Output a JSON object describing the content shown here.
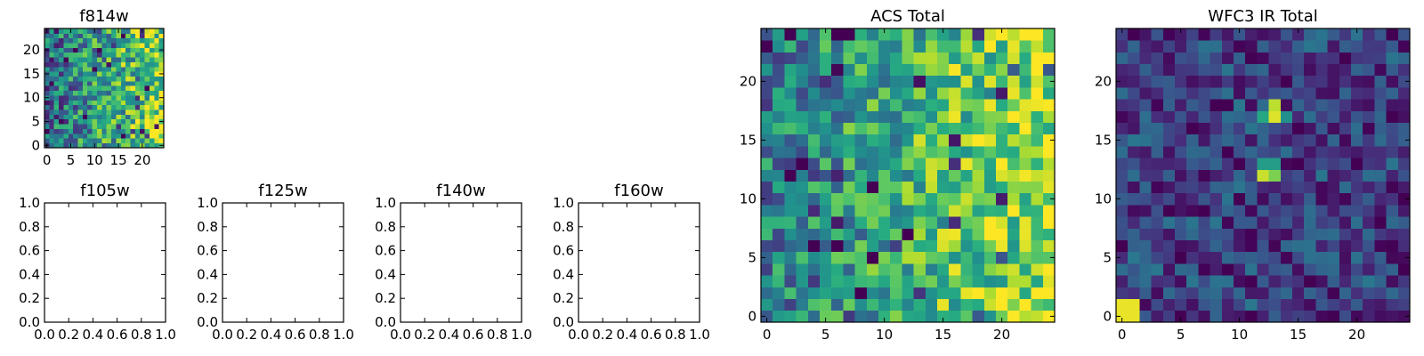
{
  "chart_data": [
    {
      "type": "heatmap",
      "title": "f814w",
      "grid_size": 25,
      "colormap": "viridis",
      "xticks": [
        "0",
        "5",
        "10",
        "15",
        "20"
      ],
      "yticks": [
        "0",
        "5",
        "10",
        "15",
        "20"
      ],
      "xlim": [
        -0.5,
        24.5
      ],
      "ylim": [
        -0.5,
        24.5
      ],
      "seed": 17,
      "trend": "x",
      "base": 0.35,
      "slope": 0.45,
      "noise": 0.32,
      "hot": []
    },
    {
      "type": "empty",
      "title": "f105w",
      "xticks": [
        "0.0",
        "0.2",
        "0.4",
        "0.6",
        "0.8",
        "1.0"
      ],
      "yticks": [
        "0.0",
        "0.2",
        "0.4",
        "0.6",
        "0.8",
        "1.0"
      ],
      "xlim": [
        0,
        1
      ],
      "ylim": [
        0,
        1
      ]
    },
    {
      "type": "empty",
      "title": "f125w",
      "xticks": [
        "0.0",
        "0.2",
        "0.4",
        "0.6",
        "0.8",
        "1.0"
      ],
      "yticks": [
        "0.0",
        "0.2",
        "0.4",
        "0.6",
        "0.8",
        "1.0"
      ],
      "xlim": [
        0,
        1
      ],
      "ylim": [
        0,
        1
      ]
    },
    {
      "type": "empty",
      "title": "f140w",
      "xticks": [
        "0.0",
        "0.2",
        "0.4",
        "0.6",
        "0.8",
        "1.0"
      ],
      "yticks": [
        "0.0",
        "0.2",
        "0.4",
        "0.6",
        "0.8",
        "1.0"
      ],
      "xlim": [
        0,
        1
      ],
      "ylim": [
        0,
        1
      ]
    },
    {
      "type": "empty",
      "title": "f160w",
      "xticks": [
        "0.0",
        "0.2",
        "0.4",
        "0.6",
        "0.8",
        "1.0"
      ],
      "yticks": [
        "0.0",
        "0.2",
        "0.4",
        "0.6",
        "0.8",
        "1.0"
      ],
      "xlim": [
        0,
        1
      ],
      "ylim": [
        0,
        1
      ]
    },
    {
      "type": "heatmap",
      "title": "ACS Total",
      "grid_size": 25,
      "colormap": "viridis",
      "xticks": [
        "0",
        "5",
        "10",
        "15",
        "20"
      ],
      "yticks": [
        "0",
        "5",
        "10",
        "15",
        "20"
      ],
      "xlim": [
        -0.5,
        24.5
      ],
      "ylim": [
        -0.5,
        24.5
      ],
      "seed": 29,
      "trend": "x",
      "base": 0.42,
      "slope": 0.45,
      "noise": 0.28,
      "hot": []
    },
    {
      "type": "heatmap",
      "title": "WFC3 IR Total",
      "grid_size": 25,
      "colormap": "viridis",
      "xticks": [
        "0",
        "5",
        "10",
        "15",
        "20"
      ],
      "yticks": [
        "0",
        "5",
        "10",
        "15",
        "20"
      ],
      "xlim": [
        -0.5,
        24.5
      ],
      "ylim": [
        -0.5,
        24.5
      ],
      "seed": 53,
      "trend": "none",
      "base": 0.2,
      "slope": 0,
      "noise": 0.2,
      "hot": [
        {
          "x": 0,
          "y": 0,
          "v": 0.97
        },
        {
          "x": 1,
          "y": 0,
          "v": 0.97
        },
        {
          "x": 0,
          "y": 1,
          "v": 0.97
        },
        {
          "x": 1,
          "y": 1,
          "v": 0.97
        },
        {
          "x": 13,
          "y": 17,
          "v": 0.95
        },
        {
          "x": 13,
          "y": 18,
          "v": 0.9
        },
        {
          "x": 12,
          "y": 17,
          "v": 0.6
        },
        {
          "x": 14,
          "y": 17,
          "v": 0.5
        },
        {
          "x": 12,
          "y": 12,
          "v": 0.92
        },
        {
          "x": 13,
          "y": 12,
          "v": 0.8
        },
        {
          "x": 12,
          "y": 13,
          "v": 0.55
        },
        {
          "x": 13,
          "y": 13,
          "v": 0.55
        }
      ]
    }
  ]
}
